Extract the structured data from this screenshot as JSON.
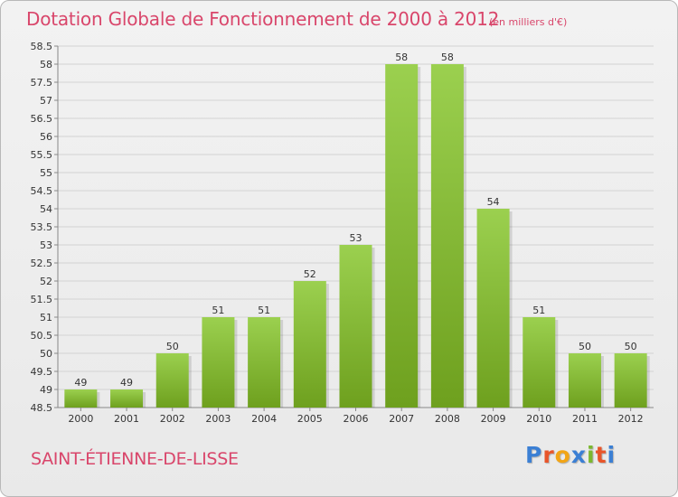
{
  "header": {
    "title": "Dotation Globale de Fonctionnement de 2000 à 2012",
    "unit": "(en milliers d'€)"
  },
  "footer": {
    "commune": "SAINT-ÉTIENNE-DE-LISSE",
    "logo": "Proxiti"
  },
  "colors": {
    "title": "#d9466b",
    "bar_top": "#9bd04f",
    "bar_bottom": "#6ea01e",
    "logo_letters": [
      "#3b7fd4",
      "#e8552a",
      "#f2a516",
      "#3b7fd4",
      "#7cb82f",
      "#e8552a",
      "#3b7fd4"
    ]
  },
  "chart_data": {
    "type": "bar",
    "title": "Dotation Globale de Fonctionnement de 2000 à 2012",
    "categories": [
      "2000",
      "2001",
      "2002",
      "2003",
      "2004",
      "2005",
      "2006",
      "2007",
      "2008",
      "2009",
      "2010",
      "2011",
      "2012"
    ],
    "values": [
      49,
      49,
      50,
      51,
      51,
      52,
      53,
      58,
      58,
      54,
      51,
      50,
      50
    ],
    "data_labels": [
      "49",
      "49",
      "50",
      "51",
      "51",
      "52",
      "53",
      "58",
      "58",
      "54",
      "51",
      "50",
      "50"
    ],
    "ylim": [
      48.5,
      58.5
    ],
    "yticks": [
      "48.5",
      "49",
      "49.5",
      "50",
      "50.5",
      "51",
      "51.5",
      "52",
      "52.5",
      "53",
      "53.5",
      "54",
      "54.5",
      "55",
      "55.5",
      "56",
      "56.5",
      "57",
      "57.5",
      "58",
      "58.5"
    ],
    "xlabel": "",
    "ylabel": "",
    "grid": true
  }
}
